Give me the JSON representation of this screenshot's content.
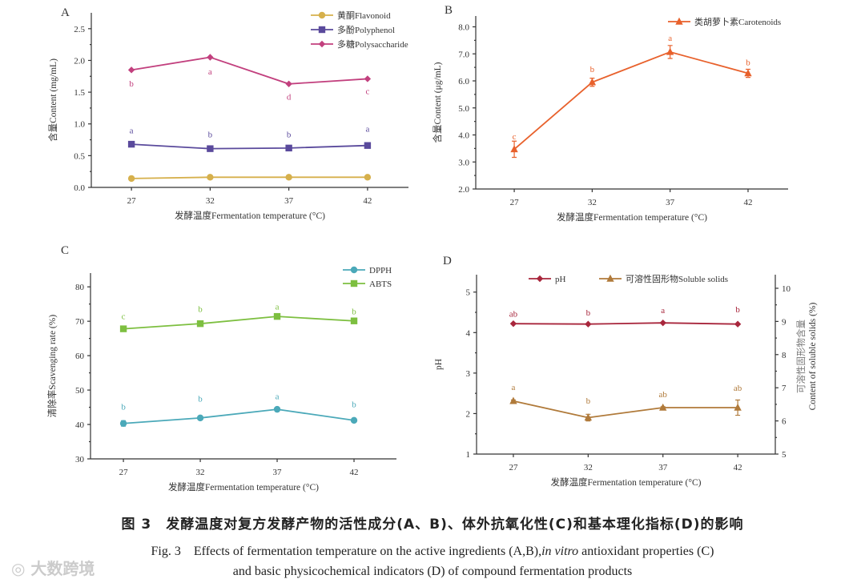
{
  "chart_data": [
    {
      "panel": "A",
      "type": "line",
      "x": [
        27,
        32,
        37,
        42
      ],
      "xlim": [
        24.45,
        44.6
      ],
      "ylim": [
        0,
        2.75
      ],
      "yticks": [
        0.0,
        0.5,
        1.0,
        1.5,
        2.0,
        2.5
      ],
      "ytick_decimals": 1,
      "xlabel": "发酵温度Fermentation temperature (°C)",
      "ylabel": "含量Content (mg/mL)",
      "legend": "top-right",
      "series": [
        {
          "name": "黄酮Flavonoid",
          "marker": "circle",
          "color": "#d6b04c",
          "values": [
            0.14,
            0.16,
            0.16,
            0.16
          ],
          "letters": [],
          "letter_y": []
        },
        {
          "name": "多酚Polyphenol",
          "marker": "square",
          "color": "#5a4a9c",
          "values": [
            0.68,
            0.61,
            0.62,
            0.66
          ],
          "letters": [
            "a",
            "b",
            "b",
            "a"
          ],
          "letter_y": [
            0.9,
            0.84,
            0.84,
            0.93
          ]
        },
        {
          "name": "多糖Polysaccharide",
          "marker": "diamond",
          "color": "#c2407e",
          "values": [
            1.85,
            2.05,
            1.63,
            1.71
          ],
          "letters": [
            "b",
            "a",
            "d",
            "c"
          ],
          "letter_y": [
            1.64,
            1.83,
            1.43,
            1.52
          ]
        }
      ]
    },
    {
      "panel": "B",
      "type": "line",
      "x": [
        27,
        32,
        37,
        42
      ],
      "xlim": [
        24.53,
        44.57
      ],
      "ylim": [
        2,
        8.4
      ],
      "yticks": [
        2,
        3,
        4,
        5,
        6,
        7,
        8
      ],
      "ytick_decimals": 1,
      "xlabel": "发酵温度Fermentation temperature (°C)",
      "ylabel": "含量Content (μg/mL)",
      "legend": "top-right",
      "series": [
        {
          "name": "类胡萝卜素Carotenoids",
          "marker": "triangle",
          "color": "#e8612c",
          "values": [
            3.47,
            5.95,
            7.07,
            6.28
          ],
          "errors": [
            0.3,
            0.15,
            0.24,
            0.15
          ],
          "letters": [
            "c",
            "b",
            "a",
            "b"
          ],
          "letter_y": [
            3.95,
            6.45,
            7.6,
            6.7
          ]
        }
      ]
    },
    {
      "panel": "C",
      "type": "line",
      "x": [
        27,
        32,
        37,
        42
      ],
      "xlim": [
        24.86,
        44.76
      ],
      "ylim": [
        30,
        84
      ],
      "yticks": [
        30,
        40,
        50,
        60,
        70,
        80
      ],
      "ytick_decimals": 0,
      "xlabel": "发酵温度Fermentation temperature (°C)",
      "ylabel": "清除率Scavenging rate (%)",
      "legend": "top-right",
      "series": [
        {
          "name": "DPPH",
          "marker": "circle",
          "color": "#4ba9b9",
          "values": [
            40.3,
            41.9,
            44.4,
            41.2
          ],
          "errors": [
            0.8,
            0.3,
            0.3,
            0.5
          ],
          "letters": [
            "b",
            "b",
            "a",
            "b"
          ],
          "letter_y": [
            45.2,
            47.6,
            48.3,
            46.0
          ]
        },
        {
          "name": "ABTS",
          "marker": "square",
          "color": "#7dbf40",
          "values": [
            67.8,
            69.3,
            71.4,
            70.1
          ],
          "errors": [
            0.3,
            0.3,
            0.3,
            0.3
          ],
          "letters": [
            "c",
            "b",
            "a",
            "b"
          ],
          "letter_y": [
            71.6,
            73.6,
            74.3,
            73.0
          ]
        }
      ]
    },
    {
      "panel": "D",
      "type": "line",
      "x": [
        27,
        32,
        37,
        42
      ],
      "xlim": [
        24.54,
        44.51
      ],
      "ylim": [
        1,
        5.43
      ],
      "y2lim": [
        5,
        10.41
      ],
      "yticks": [
        1,
        2,
        3,
        4,
        5
      ],
      "y2ticks": [
        5,
        6,
        7,
        8,
        9,
        10
      ],
      "ytick_decimals": 0,
      "xlabel": "发酵温度Fermentation temperature (°C)",
      "ylabel": "pH",
      "y2label": [
        "可溶性固形物含量",
        "Content of soluble solids (%)"
      ],
      "legend": "top",
      "series": [
        {
          "name": "pH",
          "marker": "diamond",
          "color": "#a8263c",
          "axis": "left",
          "values": [
            4.22,
            4.21,
            4.24,
            4.21
          ],
          "letters": [
            "ab",
            "b",
            "a",
            "b"
          ],
          "letter_y": [
            4.47,
            4.5,
            4.56,
            4.58
          ]
        },
        {
          "name": "可溶性固形物Soluble solids",
          "marker": "triangle",
          "color": "#b07a3a",
          "axis": "right",
          "values": [
            6.6,
            6.1,
            6.4,
            6.4
          ],
          "errors": [
            0.03,
            0.1,
            0.03,
            0.23
          ],
          "letters": [
            "a",
            "b",
            "ab",
            "ab"
          ],
          "letter_y": [
            7.03,
            6.62,
            6.81,
            7.0
          ]
        }
      ]
    }
  ],
  "caption": {
    "cn": "图 3　发酵温度对复方发酵产物的活性成分(A、B)、体外抗氧化性(C)和基本理化指标(D)的影响",
    "en_line1_pre": "Fig. 3　Effects of fermentation temperature on the active ingredients (A,B),",
    "en_line1_italic": "in vitro",
    "en_line1_post": " antioxidant properties (C)",
    "en_line2": "and basic physicochemical indicators (D) of compound fermentation products"
  },
  "watermark": "大数跨境"
}
